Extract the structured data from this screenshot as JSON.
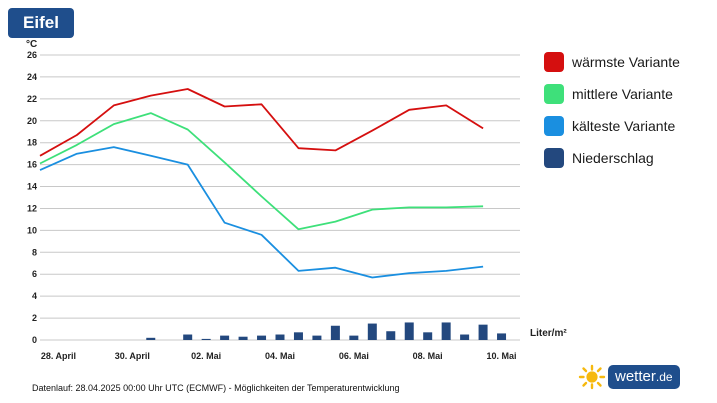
{
  "header": {
    "region": "Eifel"
  },
  "legend": [
    {
      "label": "wärmste Variante",
      "color": "#d50f0f"
    },
    {
      "label": "mittlere Variante",
      "color": "#3ee07a"
    },
    {
      "label": "kälteste Variante",
      "color": "#1a8fe0"
    },
    {
      "label": "Niederschlag",
      "color": "#23487e"
    }
  ],
  "footer": {
    "note": "Datenlauf: 28.04.2025 00:00 Uhr UTC (ECMWF) - Möglichkeiten der Temperaturentwicklung"
  },
  "brand": {
    "name": "wetter",
    "tld": ".de"
  },
  "chart_data": {
    "type": "line",
    "title": "Eifel",
    "ylabel": "°C",
    "ylim": [
      0,
      26
    ],
    "yticks": [
      0,
      2,
      4,
      6,
      8,
      10,
      12,
      14,
      16,
      18,
      20,
      22,
      24,
      26
    ],
    "grid": true,
    "x_range_days": [
      -0.5,
      12.5
    ],
    "x_tick_labels": [
      {
        "day": 0,
        "label": "28. April"
      },
      {
        "day": 2,
        "label": "30. April"
      },
      {
        "day": 4,
        "label": "02. Mai"
      },
      {
        "day": 6,
        "label": "04. Mai"
      },
      {
        "day": 8,
        "label": "06. Mai"
      },
      {
        "day": 10,
        "label": "08. Mai"
      },
      {
        "day": 12,
        "label": "10. Mai"
      }
    ],
    "series": [
      {
        "name": "wärmste Variante",
        "color": "#d50f0f",
        "x": [
          -0.5,
          0.5,
          1.5,
          2.5,
          3.5,
          4.5,
          5.5,
          6.5,
          7.5,
          8.5,
          9.5,
          10.5,
          11.5
        ],
        "values": [
          16.8,
          18.7,
          21.4,
          22.3,
          22.9,
          21.3,
          21.5,
          17.5,
          17.3,
          19.1,
          21.0,
          21.4,
          19.3
        ]
      },
      {
        "name": "mittlere Variante",
        "color": "#3ee07a",
        "x": [
          -0.5,
          0.5,
          1.5,
          2.5,
          3.5,
          4.5,
          5.5,
          6.5,
          7.5,
          8.5,
          9.5,
          10.5,
          11.5
        ],
        "values": [
          16.1,
          17.8,
          19.7,
          20.7,
          19.2,
          16.2,
          13.1,
          10.1,
          10.8,
          11.9,
          12.1,
          12.1,
          12.2
        ]
      },
      {
        "name": "kälteste Variante",
        "color": "#1a8fe0",
        "x": [
          -0.5,
          0.5,
          1.5,
          2.5,
          3.5,
          4.5,
          5.5,
          6.5,
          7.5,
          8.5,
          9.5,
          10.5,
          11.5
        ],
        "values": [
          15.5,
          17.0,
          17.6,
          16.8,
          16.0,
          10.7,
          9.6,
          6.3,
          6.6,
          5.7,
          6.1,
          6.3,
          6.7
        ]
      }
    ],
    "precipitation": {
      "name": "Niederschlag",
      "unit": "Liter/m²",
      "color": "#23487e",
      "x": [
        0,
        0.5,
        1,
        1.5,
        2,
        2.5,
        3,
        3.5,
        4,
        4.5,
        5,
        5.5,
        6,
        6.5,
        7,
        7.5,
        8,
        8.5,
        9,
        9.5,
        10,
        10.5,
        11,
        11.5
      ],
      "values": [
        0,
        0,
        0,
        0,
        0,
        0.2,
        0,
        0.5,
        0.1,
        0.4,
        0.3,
        0.4,
        0.5,
        0.7,
        0.4,
        1.3,
        0.4,
        1.5,
        0.8,
        1.6,
        0.7,
        1.6,
        0.5,
        1.4
      ]
    },
    "precipitation_extra": {
      "x": 12,
      "value": 0.6
    }
  }
}
